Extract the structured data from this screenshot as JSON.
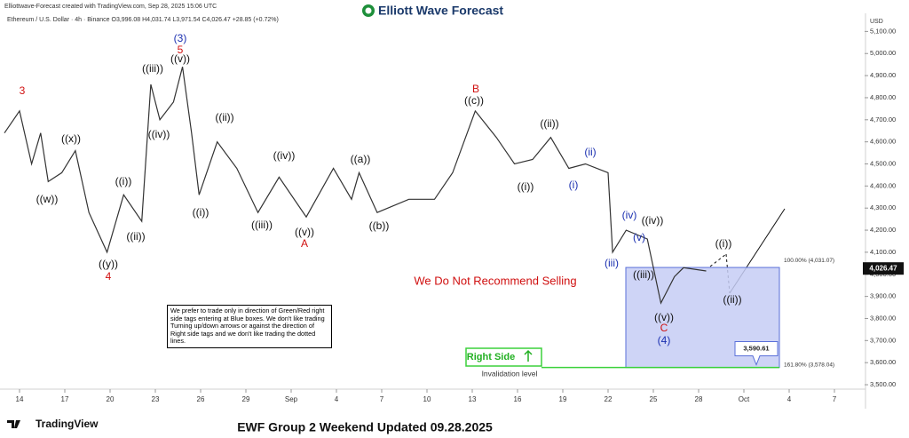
{
  "header": {
    "credit": "Elliottwave-Forecast created with TradingView.com, Sep 28, 2025 15:06 UTC",
    "symbol": "Ethereum / U.S. Dollar · 4h · Binance  O3,996.08 H4,031.74 L3,971.54 C4,026.47 +28.85 (+0.72%)",
    "logo": "Elliott Wave Forecast"
  },
  "chart_data": {
    "type": "line",
    "y_unit": "USD",
    "x": [
      -1,
      0,
      0.8,
      1.4,
      1.9,
      2.8,
      3.7,
      4.6,
      5.8,
      6.9,
      8.1,
      8.7,
      9.3,
      10.2,
      10.8,
      11.4,
      11.9,
      13.1,
      14.4,
      15.8,
      17.2,
      19,
      20.8,
      22,
      22.5,
      23.7,
      25.8,
      27.5,
      28.7,
      30.2,
      31.6,
      32.8,
      34,
      35.2,
      36.4,
      37.5,
      39,
      39.3,
      40.2,
      41.6,
      42.5,
      43.4,
      44,
      45.5
    ],
    "series": [
      {
        "name": "Ethereum / U.S. Dollar",
        "color": "#333333",
        "values": [
          4640,
          4740,
          4500,
          4640,
          4420,
          4460,
          4560,
          4280,
          4100,
          4360,
          4240,
          4860,
          4700,
          4780,
          4940,
          4640,
          4360,
          4600,
          4480,
          4280,
          4440,
          4260,
          4480,
          4340,
          4460,
          4280,
          4340,
          4340,
          4460,
          4740,
          4620,
          4500,
          4520,
          4620,
          4480,
          4500,
          4460,
          4100,
          4200,
          4160,
          3870,
          3990,
          4030,
          4015
        ]
      }
    ],
    "xlim": [
      -1,
      56
    ],
    "xticks": [
      {
        "value": 0,
        "label": "14"
      },
      {
        "value": 3,
        "label": "17"
      },
      {
        "value": 6,
        "label": "20"
      },
      {
        "value": 9,
        "label": "23"
      },
      {
        "value": 12,
        "label": "26"
      },
      {
        "value": 15,
        "label": "29"
      },
      {
        "value": 18,
        "label": "Sep"
      },
      {
        "value": 21,
        "label": "4"
      },
      {
        "value": 24,
        "label": "7"
      },
      {
        "value": 27,
        "label": "10"
      },
      {
        "value": 30,
        "label": "13"
      },
      {
        "value": 33,
        "label": "16"
      },
      {
        "value": 36,
        "label": "19"
      },
      {
        "value": 39,
        "label": "22"
      },
      {
        "value": 42,
        "label": "25"
      },
      {
        "value": 45,
        "label": "28"
      },
      {
        "value": 48,
        "label": "Oct"
      },
      {
        "value": 51,
        "label": "4"
      },
      {
        "value": 54,
        "label": "7"
      }
    ],
    "ylim": [
      3480,
      5170
    ],
    "yticks": [
      {
        "value": 3500,
        "label": "3,500.00"
      },
      {
        "value": 3600,
        "label": "3,600.00"
      },
      {
        "value": 3700,
        "label": "3,700.00"
      },
      {
        "value": 3800,
        "label": "3,800.00"
      },
      {
        "value": 3900,
        "label": "3,900.00"
      },
      {
        "value": 4000,
        "label": "4,000.00"
      },
      {
        "value": 4100,
        "label": "4,100.00"
      },
      {
        "value": 4200,
        "label": "4,200.00"
      },
      {
        "value": 4300,
        "label": "4,300.00"
      },
      {
        "value": 4400,
        "label": "4,400.00"
      },
      {
        "value": 4500,
        "label": "4,500.00"
      },
      {
        "value": 4600,
        "label": "4,600.00"
      },
      {
        "value": 4700,
        "label": "4,700.00"
      },
      {
        "value": 4800,
        "label": "4,800.00"
      },
      {
        "value": 4900,
        "label": "4,900.00"
      },
      {
        "value": 5000,
        "label": "5,000.00"
      },
      {
        "value": 5100,
        "label": "5,100.00"
      }
    ],
    "last_price": {
      "value": 4026.47,
      "label": "4,026.47"
    },
    "target_price": {
      "value": 3590.61,
      "label": "3,590.61"
    },
    "zone": {
      "top": 4031.07,
      "bottom": 3578.04,
      "top_label": "100.00% (4,031.07)",
      "bottom_label": "161.80% (3,578.04)",
      "color": "#c5cdf5"
    },
    "wave_labels": [
      {
        "text": "3",
        "color": "#d01010"
      },
      {
        "text": "(3)",
        "color": "#1a2fb0"
      },
      {
        "text": "5",
        "color": "#d01010"
      },
      {
        "text": "((v))",
        "color": "#111111"
      },
      {
        "text": "((iii))",
        "color": "#111111"
      },
      {
        "text": "((iv))",
        "color": "#111111"
      },
      {
        "text": "((ii))",
        "color": "#111111"
      },
      {
        "text": "((i))",
        "color": "#111111"
      },
      {
        "text": "((x))",
        "color": "#111111"
      },
      {
        "text": "((w))",
        "color": "#111111"
      },
      {
        "text": "((i))",
        "color": "#111111"
      },
      {
        "text": "((ii))",
        "color": "#111111"
      },
      {
        "text": "((y))",
        "color": "#111111"
      },
      {
        "text": "4",
        "color": "#d01010"
      },
      {
        "text": "((iv))",
        "color": "#111111"
      },
      {
        "text": "((iii))",
        "color": "#111111"
      },
      {
        "text": "((v))",
        "color": "#111111"
      },
      {
        "text": "A",
        "color": "#d01010"
      },
      {
        "text": "((a))",
        "color": "#111111"
      },
      {
        "text": "((b))",
        "color": "#111111"
      },
      {
        "text": "B",
        "color": "#d01010"
      },
      {
        "text": "((c))",
        "color": "#111111"
      },
      {
        "text": "((ii))",
        "color": "#111111"
      },
      {
        "text": "((i))",
        "color": "#111111"
      },
      {
        "text": "(ii)",
        "color": "#1a2fb0"
      },
      {
        "text": "(i)",
        "color": "#1a2fb0"
      },
      {
        "text": "(iv)",
        "color": "#1a2fb0"
      },
      {
        "text": "((iv))",
        "color": "#111111"
      },
      {
        "text": "(v)",
        "color": "#1a2fb0"
      },
      {
        "text": "(iii)",
        "color": "#1a2fb0"
      },
      {
        "text": "((iii))",
        "color": "#111111"
      },
      {
        "text": "((v))",
        "color": "#111111"
      },
      {
        "text": "C",
        "color": "#d01010"
      },
      {
        "text": "(4)",
        "color": "#1a2fb0"
      },
      {
        "text": "((i))",
        "color": "#111111"
      },
      {
        "text": "((ii))",
        "color": "#111111"
      }
    ],
    "warning": "We Do Not Recommend Selling",
    "note": "We prefer to trade only in direction of Green/Red right side tags entering at Blue boxes. We don't like trading Turning up/down arrows or against the direction of Right side tags and we don't like trading the dotted lines.",
    "right_side": "Right Side",
    "invalidation": "Invalidation level"
  },
  "footer": {
    "brand": "TradingView",
    "title": "EWF Group 2 Weekend Updated 09.28.2025"
  }
}
